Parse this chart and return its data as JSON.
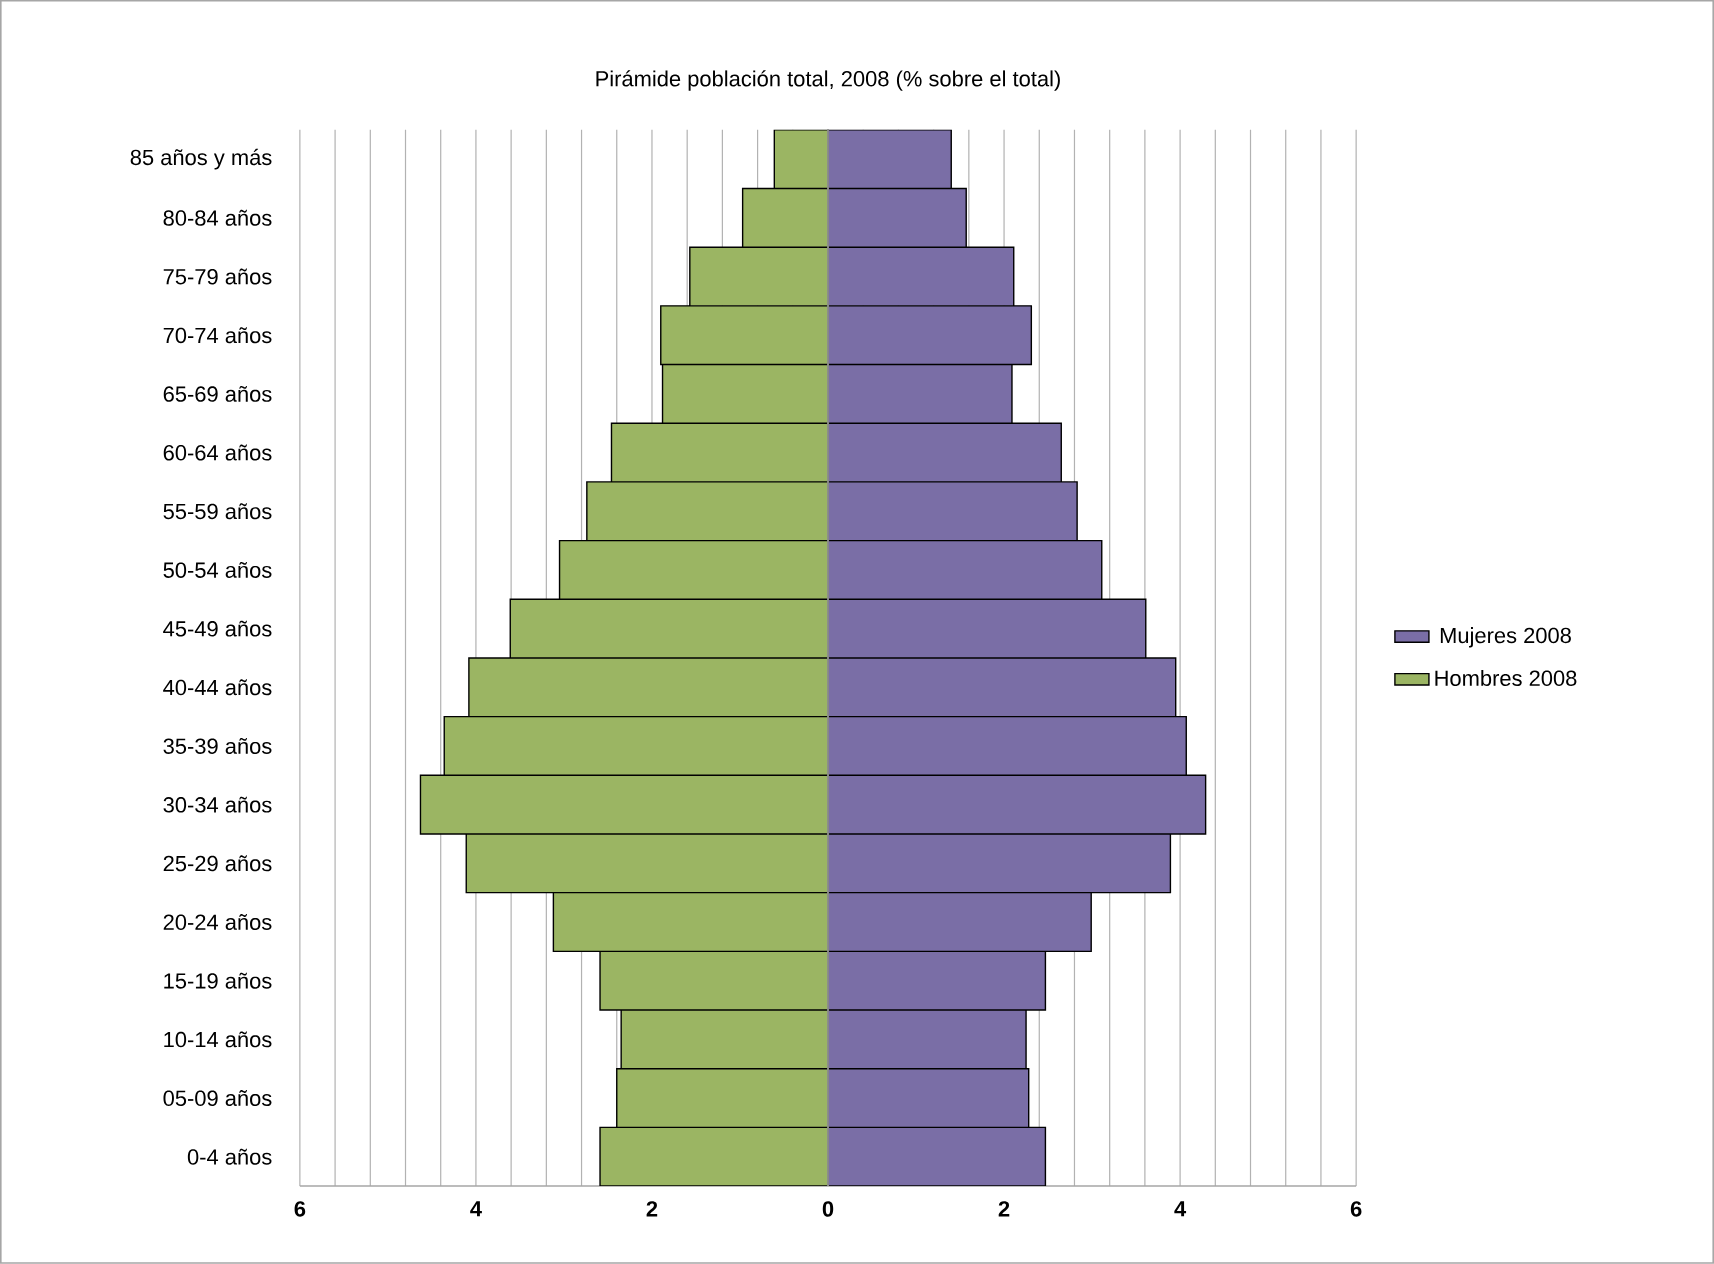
{
  "chart_data": {
    "type": "bar",
    "orientation": "horizontal",
    "stacked": true,
    "title": "Pirámide población total, 2008 (% sobre el total)",
    "categories": [
      "85 años y más",
      "80-84 años",
      "75-79 años",
      "70-74 años",
      "65-69 años",
      "60-64 años",
      "55-59 años",
      "50-54 años",
      "45-49 años",
      "40-44 años",
      "35-39 años",
      "30-34 años",
      "25-29 años",
      "20-24 años",
      "15-19 años",
      "10-14 años",
      "05-09 años",
      "0-4 años"
    ],
    "series": [
      {
        "name": "Mujeres 2008",
        "color": "#7a6ea6",
        "values": [
          1.4,
          1.57,
          2.11,
          2.31,
          2.09,
          2.65,
          2.83,
          3.11,
          3.61,
          3.95,
          4.07,
          4.29,
          3.89,
          2.99,
          2.47,
          2.25,
          2.28,
          2.47
        ]
      },
      {
        "name": "Hombres 2008",
        "color": "#9bb563",
        "values": [
          -0.61,
          -0.97,
          -1.57,
          -1.9,
          -1.88,
          -2.46,
          -2.74,
          -3.05,
          -3.61,
          -4.08,
          -4.36,
          -4.63,
          -4.11,
          -3.12,
          -2.59,
          -2.35,
          -2.4,
          -2.59
        ]
      }
    ],
    "xlim": [
      -6,
      6
    ],
    "xticks": [
      {
        "value": -6,
        "label": "6"
      },
      {
        "value": -4,
        "label": "4"
      },
      {
        "value": -2,
        "label": "2"
      },
      0,
      2,
      4,
      6
    ],
    "grid": "x",
    "legend": "right"
  }
}
